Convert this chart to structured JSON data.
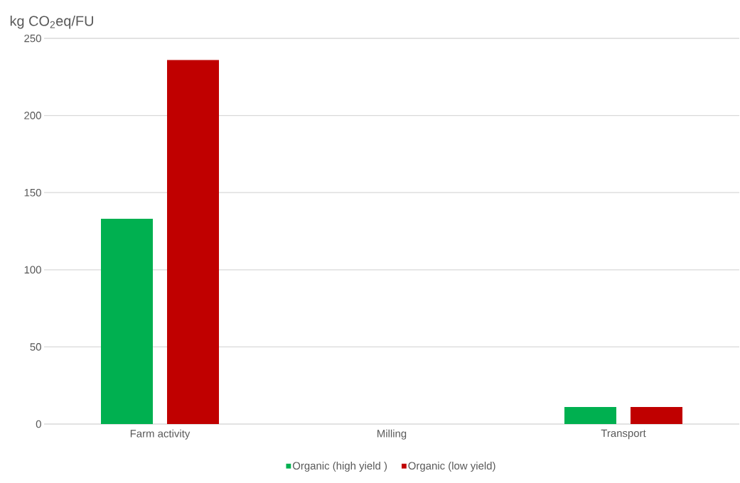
{
  "chart_data": {
    "type": "bar",
    "ylabel": "kg CO$_{2}$eq/FU",
    "categories": [
      "Farm activity",
      "Milling",
      "Transport"
    ],
    "series": [
      {
        "name": "Organic (high yield )",
        "color": "#00b050",
        "values": [
          133,
          0,
          11
        ]
      },
      {
        "name": "Organic (low yield)",
        "color": "#c00000",
        "values": [
          236,
          0,
          11
        ]
      }
    ],
    "ylim": [
      0,
      250
    ],
    "yticks": [
      0,
      50,
      100,
      150,
      200,
      250
    ],
    "grid": "y",
    "legend": "bottom"
  }
}
